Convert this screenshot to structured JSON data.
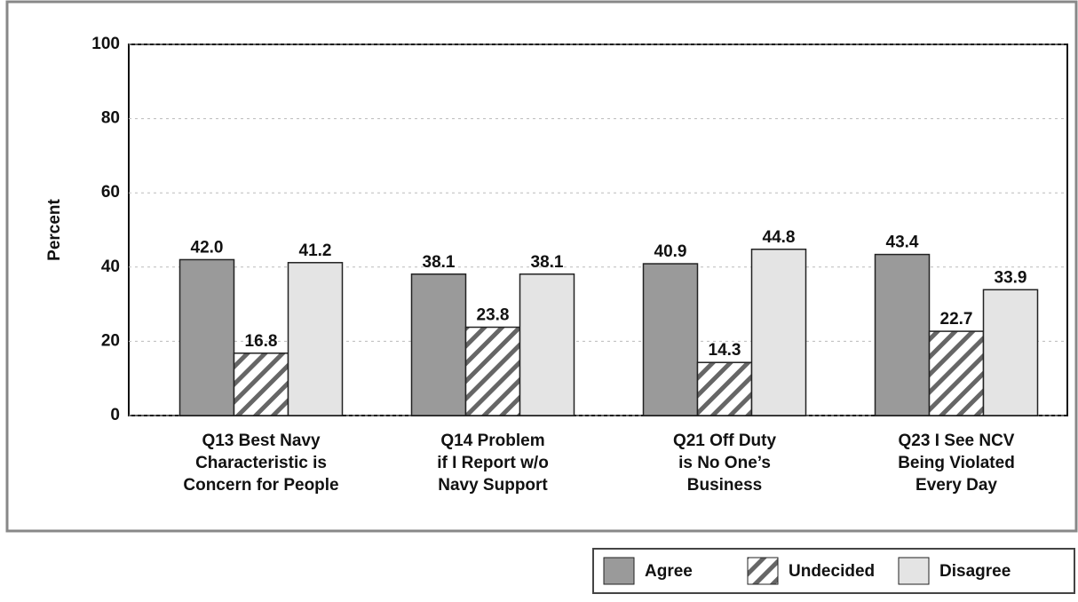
{
  "chart_data": {
    "type": "bar",
    "y_label": "Percent",
    "categories": [
      [
        "Q13 Best Navy",
        "Characteristic is",
        "Concern for People"
      ],
      [
        "Q14 Problem",
        "if I Report w/o",
        "Navy Support"
      ],
      [
        "Q21 Off Duty",
        "is No One’s",
        "Business"
      ],
      [
        "Q23 I See NCV",
        "Being Violated",
        "Every Day"
      ]
    ],
    "series": [
      {
        "name": "Agree",
        "color": "#9a9a9a",
        "pattern": "stipple",
        "values": [
          42.0,
          38.1,
          40.9,
          43.4
        ],
        "value_labels": [
          "42.0",
          "38.1",
          "40.9",
          "43.4"
        ]
      },
      {
        "name": "Undecided",
        "color": "#ffffff",
        "pattern": "hatch",
        "values": [
          16.8,
          23.8,
          14.3,
          22.7
        ],
        "value_labels": [
          "16.8",
          "23.8",
          "14.3",
          "22.7"
        ]
      },
      {
        "name": "Disagree",
        "color": "#e4e4e4",
        "pattern": "stipple",
        "values": [
          41.2,
          38.1,
          44.8,
          33.9
        ],
        "value_labels": [
          "41.2",
          "38.1",
          "44.8",
          "33.9"
        ]
      }
    ],
    "ylim": [
      0,
      100
    ],
    "yticks": [
      0,
      20,
      40,
      60,
      80,
      100
    ],
    "grid": true,
    "legend": "bottom-right"
  }
}
